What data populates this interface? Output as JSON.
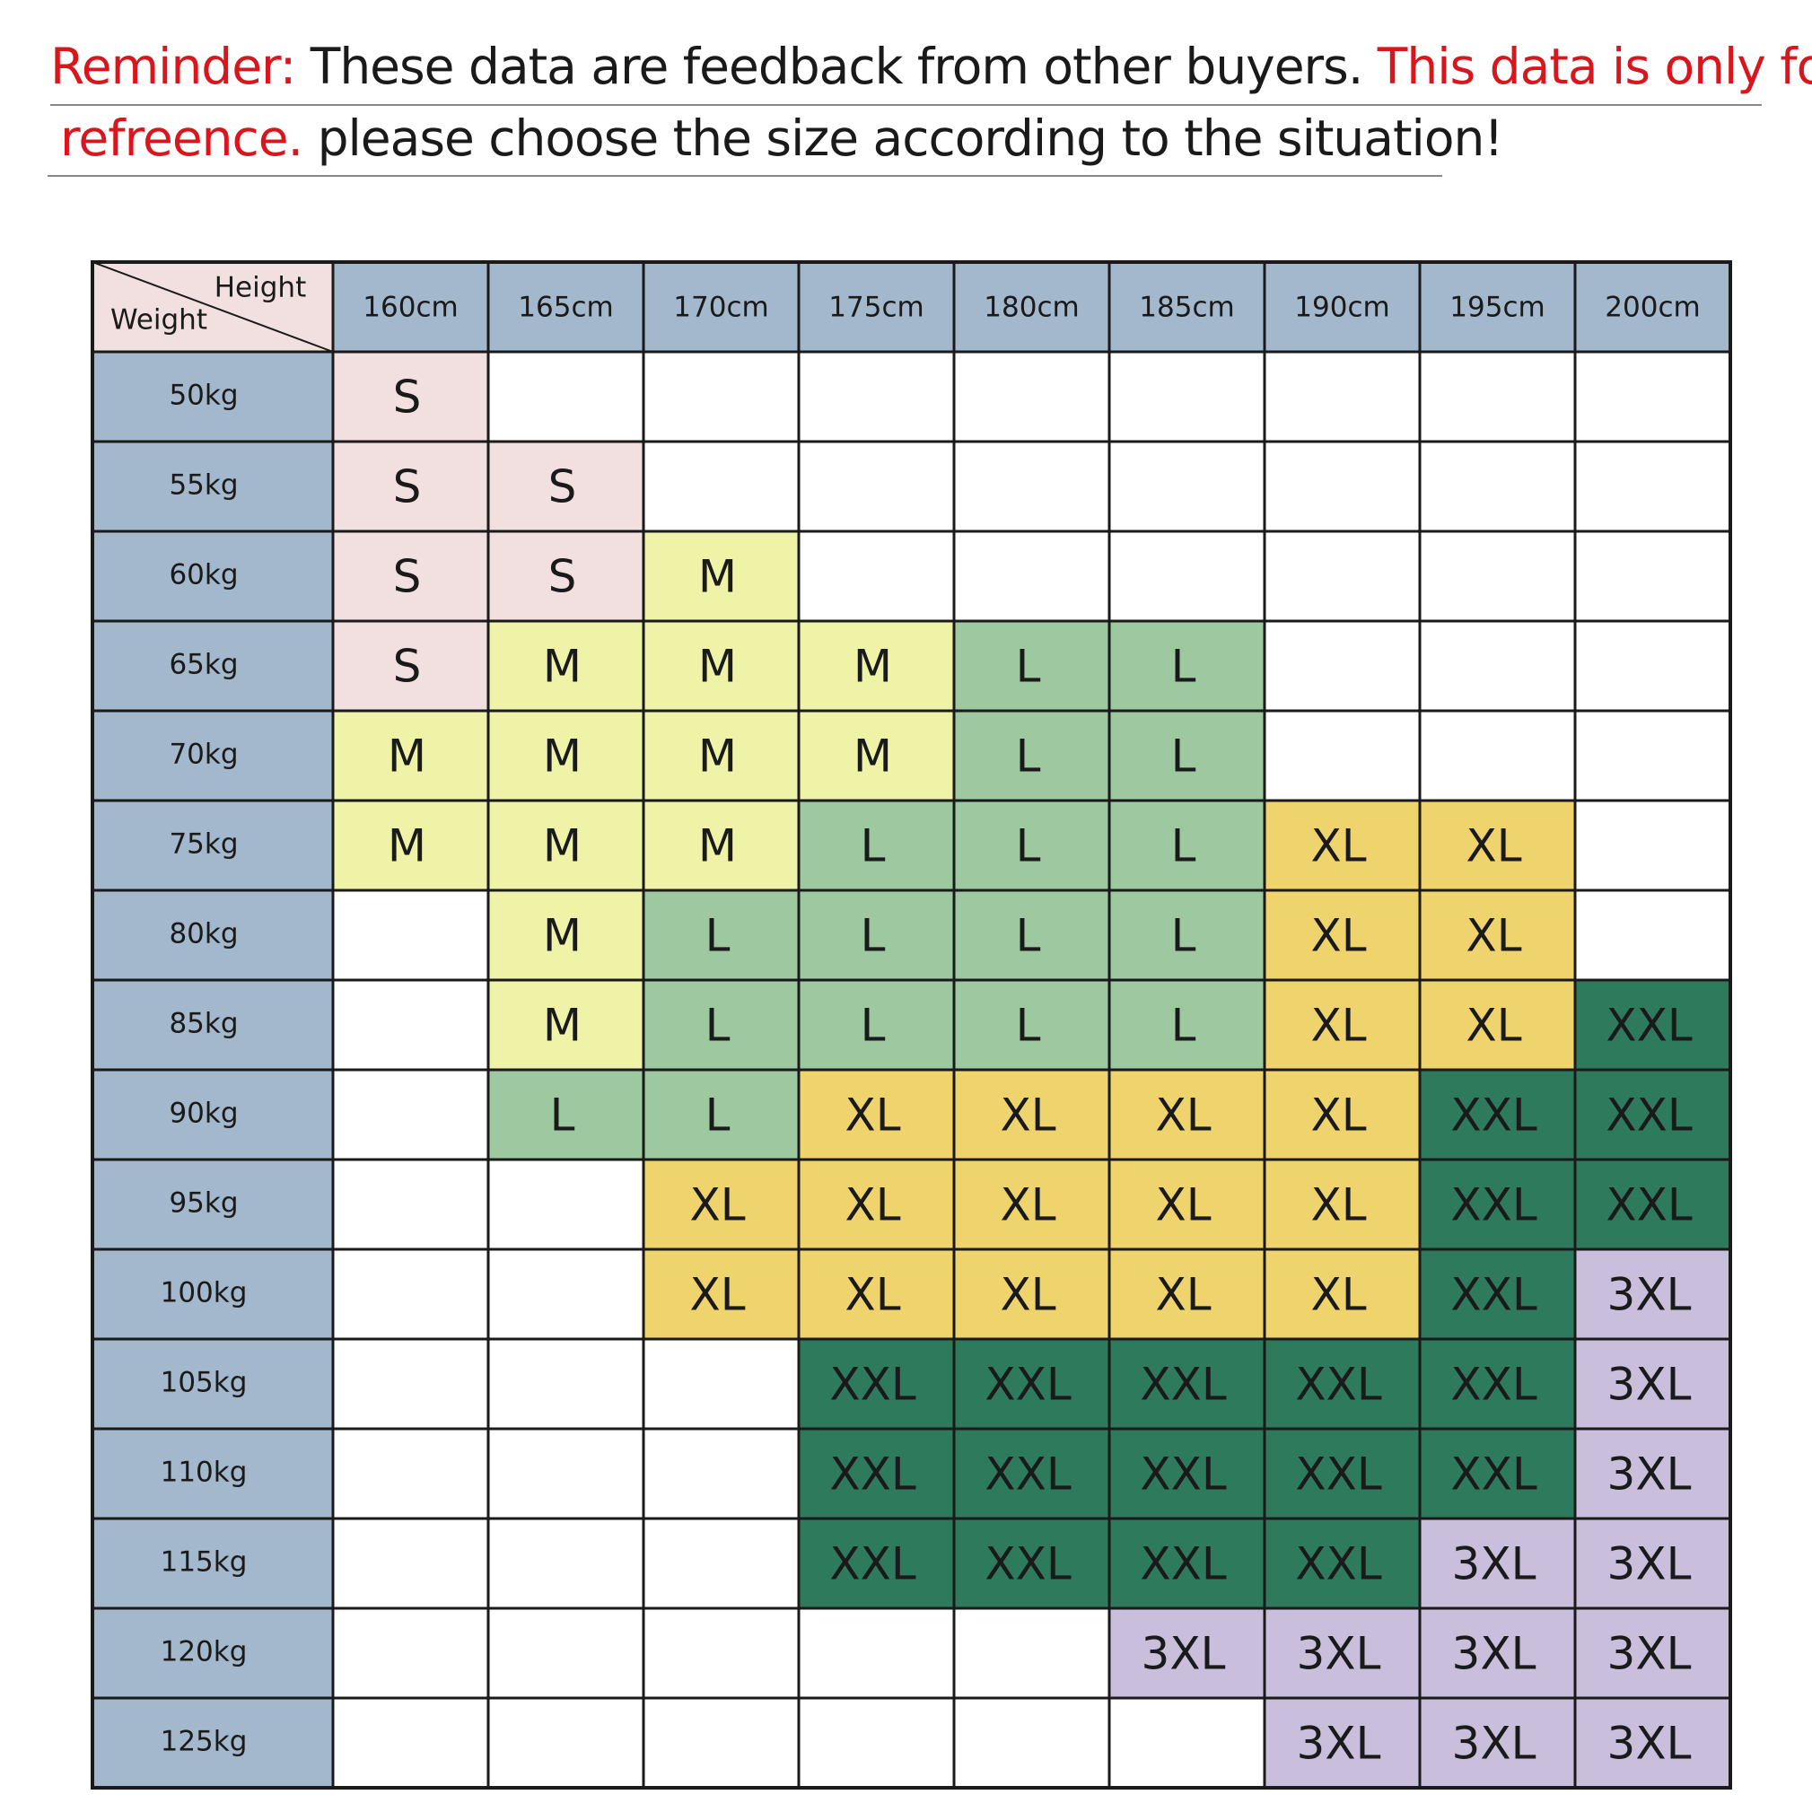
{
  "reminder": {
    "line1": {
      "label": "Reminder:",
      "text": "These data are feedback from other buyers.",
      "emphasis": "This data is only for"
    },
    "line2": {
      "emphasis": "refreence.",
      "text": "please choose the size according to the situation!"
    }
  },
  "table": {
    "corner": {
      "height_label": "Height",
      "weight_label": "Weight"
    },
    "columns": [
      "160cm",
      "165cm",
      "170cm",
      "175cm",
      "180cm",
      "185cm",
      "190cm",
      "195cm",
      "200cm"
    ],
    "size_colors": {
      "S": "#f2dfdf",
      "M": "#eef3a8",
      "L": "#9dc8a0",
      "XL": "#efd46e",
      "XXL": "#2e7a5c",
      "3XL": "#c9bedb"
    },
    "rows": [
      {
        "weight": "50kg",
        "sizes": [
          "S",
          null,
          null,
          null,
          null,
          null,
          null,
          null,
          null
        ]
      },
      {
        "weight": "55kg",
        "sizes": [
          "S",
          "S",
          null,
          null,
          null,
          null,
          null,
          null,
          null
        ]
      },
      {
        "weight": "60kg",
        "sizes": [
          "S",
          "S",
          "M",
          null,
          null,
          null,
          null,
          null,
          null
        ]
      },
      {
        "weight": "65kg",
        "sizes": [
          "S",
          "M",
          "M",
          "M",
          "L",
          "L",
          null,
          null,
          null
        ]
      },
      {
        "weight": "70kg",
        "sizes": [
          "M",
          "M",
          "M",
          "M",
          "L",
          "L",
          null,
          null,
          null
        ]
      },
      {
        "weight": "75kg",
        "sizes": [
          "M",
          "M",
          "M",
          "L",
          "L",
          "L",
          "XL",
          "XL",
          null
        ]
      },
      {
        "weight": "80kg",
        "sizes": [
          null,
          "M",
          "L",
          "L",
          "L",
          "L",
          "XL",
          "XL",
          null
        ]
      },
      {
        "weight": "85kg",
        "sizes": [
          null,
          "M",
          "L",
          "L",
          "L",
          "L",
          "XL",
          "XL",
          "XXL"
        ]
      },
      {
        "weight": "90kg",
        "sizes": [
          null,
          "L",
          "L",
          "XL",
          "XL",
          "XL",
          "XL",
          "XXL",
          "XXL"
        ]
      },
      {
        "weight": "95kg",
        "sizes": [
          null,
          null,
          "XL",
          "XL",
          "XL",
          "XL",
          "XL",
          "XXL",
          "XXL"
        ]
      },
      {
        "weight": "100kg",
        "sizes": [
          null,
          null,
          "XL",
          "XL",
          "XL",
          "XL",
          "XL",
          "XXL",
          "3XL"
        ]
      },
      {
        "weight": "105kg",
        "sizes": [
          null,
          null,
          null,
          "XXL",
          "XXL",
          "XXL",
          "XXL",
          "XXL",
          "3XL"
        ]
      },
      {
        "weight": "110kg",
        "sizes": [
          null,
          null,
          null,
          "XXL",
          "XXL",
          "XXL",
          "XXL",
          "XXL",
          "3XL"
        ]
      },
      {
        "weight": "115kg",
        "sizes": [
          null,
          null,
          null,
          "XXL",
          "XXL",
          "XXL",
          "XXL",
          "3XL",
          "3XL"
        ]
      },
      {
        "weight": "120kg",
        "sizes": [
          null,
          null,
          null,
          null,
          null,
          "3XL",
          "3XL",
          "3XL",
          "3XL"
        ]
      },
      {
        "weight": "125kg",
        "sizes": [
          null,
          null,
          null,
          null,
          null,
          null,
          "3XL",
          "3XL",
          "3XL"
        ]
      }
    ]
  }
}
